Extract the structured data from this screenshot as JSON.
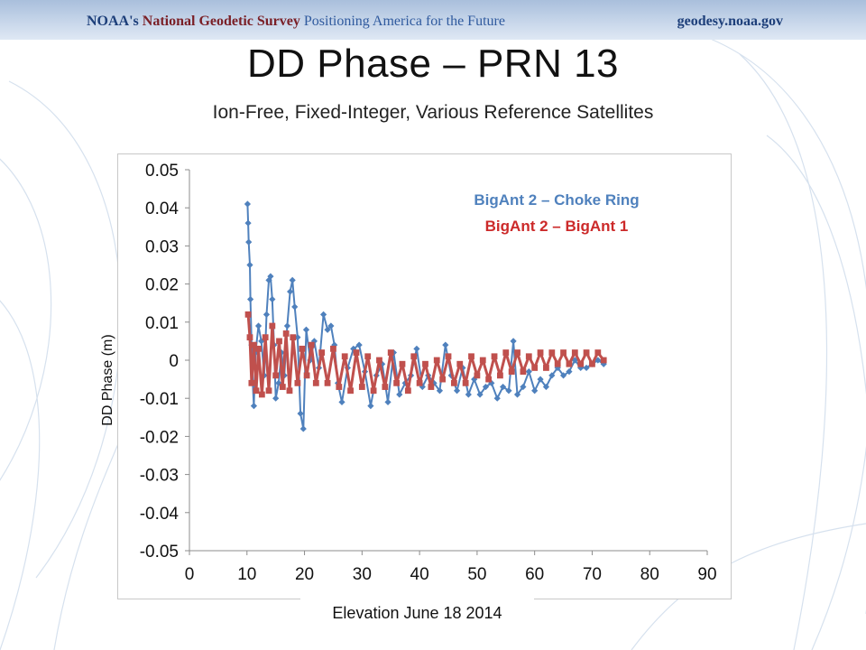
{
  "header": {
    "org": "NOAA's",
    "agency": "National Geodetic Survey",
    "tagline": "Positioning America for the Future",
    "website": "geodesy.noaa.gov"
  },
  "slide": {
    "title": "DD Phase – PRN 13",
    "subtitle": "Ion-Free, Fixed-Integer, Various Reference Satellites"
  },
  "colors": {
    "series1": "#4f81bd",
    "series2": "#c0504d",
    "text": "#111111"
  },
  "chart_data": {
    "type": "scatter",
    "title": "",
    "xlabel": "Elevation June 18 2014",
    "ylabel": "DD Phase (m)",
    "xlim": [
      0,
      90
    ],
    "ylim": [
      -0.05,
      0.05
    ],
    "x_ticks": [
      "0",
      "10",
      "20",
      "30",
      "40",
      "50",
      "60",
      "70",
      "80",
      "90"
    ],
    "y_ticks": [
      "0.05",
      "0.04",
      "0.03",
      "0.02",
      "0.01",
      "0",
      "-0.01",
      "-0.02",
      "-0.03",
      "-0.04",
      "-0.05"
    ],
    "grid": false,
    "legend_position": "top-right",
    "series": [
      {
        "name": "BigAnt 2 – Choke Ring",
        "color": "#4f81bd",
        "marker": "diamond",
        "x": [
          10.1,
          10.2,
          10.3,
          10.5,
          10.6,
          10.8,
          11.0,
          11.2,
          11.5,
          12.0,
          12.5,
          13.0,
          13.4,
          13.8,
          14.1,
          14.4,
          14.7,
          15.0,
          15.5,
          16.0,
          16.5,
          17.0,
          17.5,
          17.9,
          18.3,
          18.8,
          19.3,
          19.8,
          20.3,
          21.0,
          21.7,
          22.5,
          23.3,
          24.0,
          24.6,
          25.2,
          25.8,
          26.5,
          27.5,
          28.5,
          29.5,
          30.5,
          31.5,
          32.5,
          33.5,
          34.5,
          35.5,
          36.5,
          37.5,
          38.5,
          39.5,
          40.5,
          41.5,
          42.5,
          43.5,
          44.5,
          45.5,
          46.5,
          47.5,
          48.5,
          49.5,
          50.5,
          51.5,
          52.5,
          53.5,
          54.5,
          55.5,
          56.3,
          57.0,
          58.0,
          59.0,
          60.0,
          61.0,
          62.0,
          63.0,
          64.0,
          65.0,
          66.0,
          67.0,
          68.0,
          69.0,
          70.0,
          71.0,
          72.0
        ],
        "y": [
          0.041,
          0.036,
          0.031,
          0.025,
          0.016,
          0.004,
          -0.006,
          -0.012,
          0.002,
          0.009,
          0.005,
          -0.004,
          0.012,
          0.021,
          0.022,
          0.016,
          0.004,
          -0.01,
          -0.006,
          0.002,
          -0.004,
          0.009,
          0.018,
          0.021,
          0.014,
          0.006,
          -0.014,
          -0.018,
          0.008,
          0.0,
          0.005,
          -0.002,
          0.012,
          0.008,
          0.009,
          0.004,
          -0.006,
          -0.011,
          -0.002,
          0.003,
          0.004,
          -0.003,
          -0.012,
          -0.004,
          -0.001,
          -0.011,
          0.002,
          -0.009,
          -0.006,
          -0.004,
          0.003,
          -0.007,
          -0.004,
          -0.006,
          -0.008,
          0.004,
          -0.004,
          -0.008,
          -0.002,
          -0.009,
          -0.005,
          -0.009,
          -0.007,
          -0.006,
          -0.01,
          -0.007,
          -0.008,
          0.005,
          -0.009,
          -0.007,
          -0.003,
          -0.008,
          -0.005,
          -0.007,
          -0.004,
          -0.002,
          -0.004,
          -0.003,
          0.0,
          -0.002,
          -0.002,
          -0.001,
          0.0,
          -0.001
        ]
      },
      {
        "name": "BigAnt 2 – BigAnt 1",
        "color": "#c0504d",
        "marker": "square",
        "x": [
          10.2,
          10.5,
          10.8,
          11.2,
          11.6,
          12.0,
          12.6,
          13.2,
          13.8,
          14.4,
          15.0,
          15.6,
          16.2,
          16.8,
          17.4,
          18.0,
          18.8,
          19.6,
          20.4,
          21.2,
          22.0,
          23.0,
          24.0,
          25.0,
          26.0,
          27.0,
          28.0,
          29.0,
          30.0,
          31.0,
          32.0,
          33.0,
          34.0,
          35.0,
          36.0,
          37.0,
          38.0,
          39.0,
          40.0,
          41.0,
          42.0,
          43.0,
          44.0,
          45.0,
          46.0,
          47.0,
          48.0,
          49.0,
          50.0,
          51.0,
          52.0,
          53.0,
          54.0,
          55.0,
          56.0,
          57.0,
          58.0,
          59.0,
          60.0,
          61.0,
          62.0,
          63.0,
          64.0,
          65.0,
          66.0,
          67.0,
          68.0,
          69.0,
          70.0,
          71.0,
          72.0
        ],
        "y": [
          0.012,
          0.006,
          -0.006,
          0.004,
          -0.008,
          0.003,
          -0.009,
          0.006,
          -0.008,
          0.009,
          -0.004,
          0.005,
          -0.007,
          0.007,
          -0.008,
          0.006,
          -0.006,
          0.003,
          -0.004,
          0.004,
          -0.006,
          0.002,
          -0.006,
          0.003,
          -0.007,
          0.001,
          -0.008,
          0.002,
          -0.007,
          0.001,
          -0.008,
          0.0,
          -0.007,
          0.002,
          -0.006,
          -0.001,
          -0.008,
          0.001,
          -0.006,
          -0.001,
          -0.007,
          0.0,
          -0.005,
          0.001,
          -0.006,
          -0.001,
          -0.006,
          0.001,
          -0.004,
          0.0,
          -0.005,
          0.001,
          -0.004,
          0.002,
          -0.003,
          0.002,
          -0.003,
          0.001,
          -0.002,
          0.002,
          -0.002,
          0.002,
          -0.001,
          0.002,
          -0.001,
          0.002,
          -0.001,
          0.002,
          -0.001,
          0.002,
          0.0
        ]
      }
    ]
  }
}
